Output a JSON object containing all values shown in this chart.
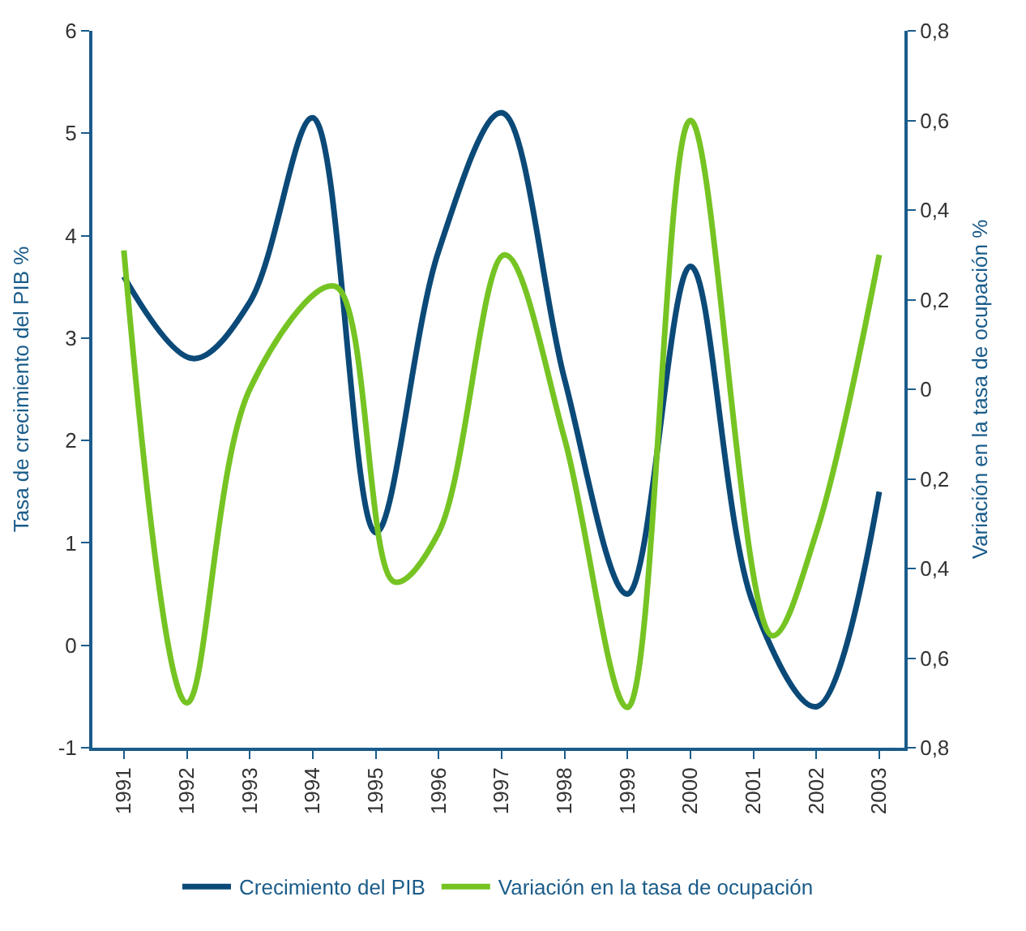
{
  "chart_data": {
    "type": "line",
    "ylabel": "Tasa de crecimiento del PIB %",
    "y2label": "Variación en la tasa de ocupación %",
    "xlim": [
      1990.5,
      2003.4
    ],
    "xticks": [
      1991,
      1992,
      1993,
      1994,
      1995,
      1996,
      1997,
      1998,
      1999,
      2000,
      2001,
      2002,
      2003
    ],
    "ylim": [
      -1,
      6
    ],
    "yticks": [
      -1,
      0,
      1,
      2,
      3,
      4,
      5,
      6
    ],
    "y2lim": [
      -0.8,
      0.8
    ],
    "y2ticks": [
      {
        "value": -0.8,
        "label": "0,8"
      },
      {
        "value": -0.6,
        "label": "0,6"
      },
      {
        "value": -0.4,
        "label": "0,4"
      },
      {
        "value": -0.2,
        "label": "0,2"
      },
      {
        "value": 0,
        "label": "0"
      },
      {
        "value": 0.2,
        "label": "0,2"
      },
      {
        "value": 0.4,
        "label": "0,4"
      },
      {
        "value": 0.6,
        "label": "0,6"
      },
      {
        "value": 0.8,
        "label": "0,8"
      }
    ],
    "series": [
      {
        "name": "Crecimiento del PIB",
        "color": "#0b4a78",
        "x": [
          1991,
          1992.1,
          1993,
          1994,
          1995,
          1996,
          1997,
          1998,
          1999,
          2000,
          2001,
          2002,
          2003
        ],
        "values": [
          3.6,
          2.8,
          3.35,
          5.15,
          1.1,
          3.85,
          5.2,
          2.6,
          0.5,
          3.7,
          0.4,
          -0.6,
          1.5
        ]
      },
      {
        "name": "Variación en la tasa de ocupación",
        "color": "#76c423",
        "axis": "y2",
        "x": [
          1991,
          1992,
          1993,
          1994.35,
          1995.3,
          1996,
          1997.05,
          1998,
          1999,
          2000,
          2001.3,
          2002,
          2003
        ],
        "values": [
          0.31,
          -0.7,
          0.0,
          0.23,
          -0.43,
          -0.32,
          0.3,
          -0.11,
          -0.71,
          0.6,
          -0.55,
          -0.32,
          0.3
        ]
      }
    ],
    "legend": "bottom",
    "marker": "none",
    "line_style": "solid"
  }
}
